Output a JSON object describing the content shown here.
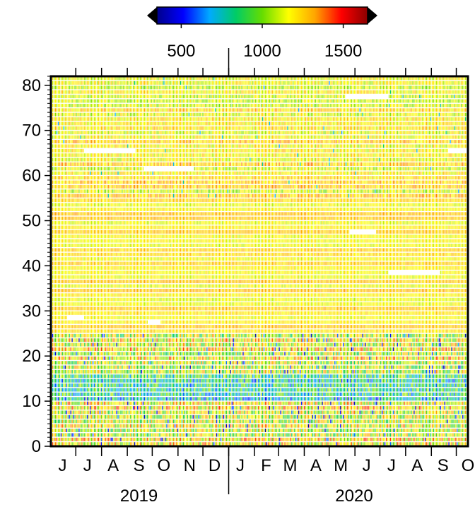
{
  "chart_data": {
    "type": "heatmap",
    "title": "",
    "xlabel": "",
    "ylabel": "",
    "colorbar": {
      "min": 350,
      "max": 1650,
      "ticks": [
        500,
        1000,
        1500
      ],
      "extend": "both",
      "colors": [
        "#00008b",
        "#0000ff",
        "#00aaff",
        "#00cc66",
        "#66dd00",
        "#ffff00",
        "#ffa500",
        "#ff0000",
        "#8b0000"
      ]
    },
    "yaxis": {
      "ylim": [
        0,
        82
      ],
      "major_ticks": [
        0,
        10,
        20,
        30,
        40,
        50,
        60,
        70,
        80
      ],
      "minor_step": 1
    },
    "xaxis": {
      "xlim": [
        "2019-06-01",
        "2020-10-15"
      ],
      "month_labels": [
        {
          "label": "J",
          "date": "2019-06-15"
        },
        {
          "label": "J",
          "date": "2019-07-15"
        },
        {
          "label": "A",
          "date": "2019-08-15"
        },
        {
          "label": "S",
          "date": "2019-09-15"
        },
        {
          "label": "O",
          "date": "2019-10-15"
        },
        {
          "label": "N",
          "date": "2019-11-15"
        },
        {
          "label": "D",
          "date": "2019-12-15"
        },
        {
          "label": "J",
          "date": "2020-01-15"
        },
        {
          "label": "F",
          "date": "2020-02-15"
        },
        {
          "label": "M",
          "date": "2020-03-15"
        },
        {
          "label": "A",
          "date": "2020-04-15"
        },
        {
          "label": "M",
          "date": "2020-05-15"
        },
        {
          "label": "J",
          "date": "2020-06-15"
        },
        {
          "label": "J",
          "date": "2020-07-15"
        },
        {
          "label": "A",
          "date": "2020-08-15"
        },
        {
          "label": "S",
          "date": "2020-09-15"
        },
        {
          "label": "O",
          "date": "2020-10-15"
        }
      ],
      "year_labels": [
        {
          "label": "2019",
          "date": "2019-09-15"
        },
        {
          "label": "2020",
          "date": "2020-05-31"
        }
      ]
    },
    "bands": [
      {
        "y0": 0,
        "y1": 10,
        "pattern": "mixed",
        "base": 1150
      },
      {
        "y0": 10,
        "y1": 16,
        "pattern": "low",
        "base": 800
      },
      {
        "y0": 16,
        "y1": 25,
        "pattern": "mixed",
        "base": 1150
      },
      {
        "y0": 25,
        "y1": 55,
        "pattern": "smooth",
        "base": 1200
      },
      {
        "y0": 55,
        "y1": 82,
        "pattern": "dashed",
        "base": 1180
      }
    ],
    "gaps": [
      {
        "y": 28,
        "from": "2019-06-20",
        "to": "2019-07-10"
      },
      {
        "y": 27,
        "from": "2019-09-25",
        "to": "2019-10-10"
      },
      {
        "y": 47,
        "from": "2020-05-25",
        "to": "2020-06-25"
      },
      {
        "y": 38,
        "from": "2020-07-10",
        "to": "2020-09-10"
      },
      {
        "y": 65,
        "from": "2019-07-10",
        "to": "2019-09-10"
      },
      {
        "y": 61,
        "from": "2019-09-20",
        "to": "2019-11-20"
      },
      {
        "y": 77,
        "from": "2020-05-20",
        "to": "2020-07-10"
      },
      {
        "y": 65,
        "from": "2020-09-20",
        "to": "2020-10-15"
      }
    ]
  }
}
